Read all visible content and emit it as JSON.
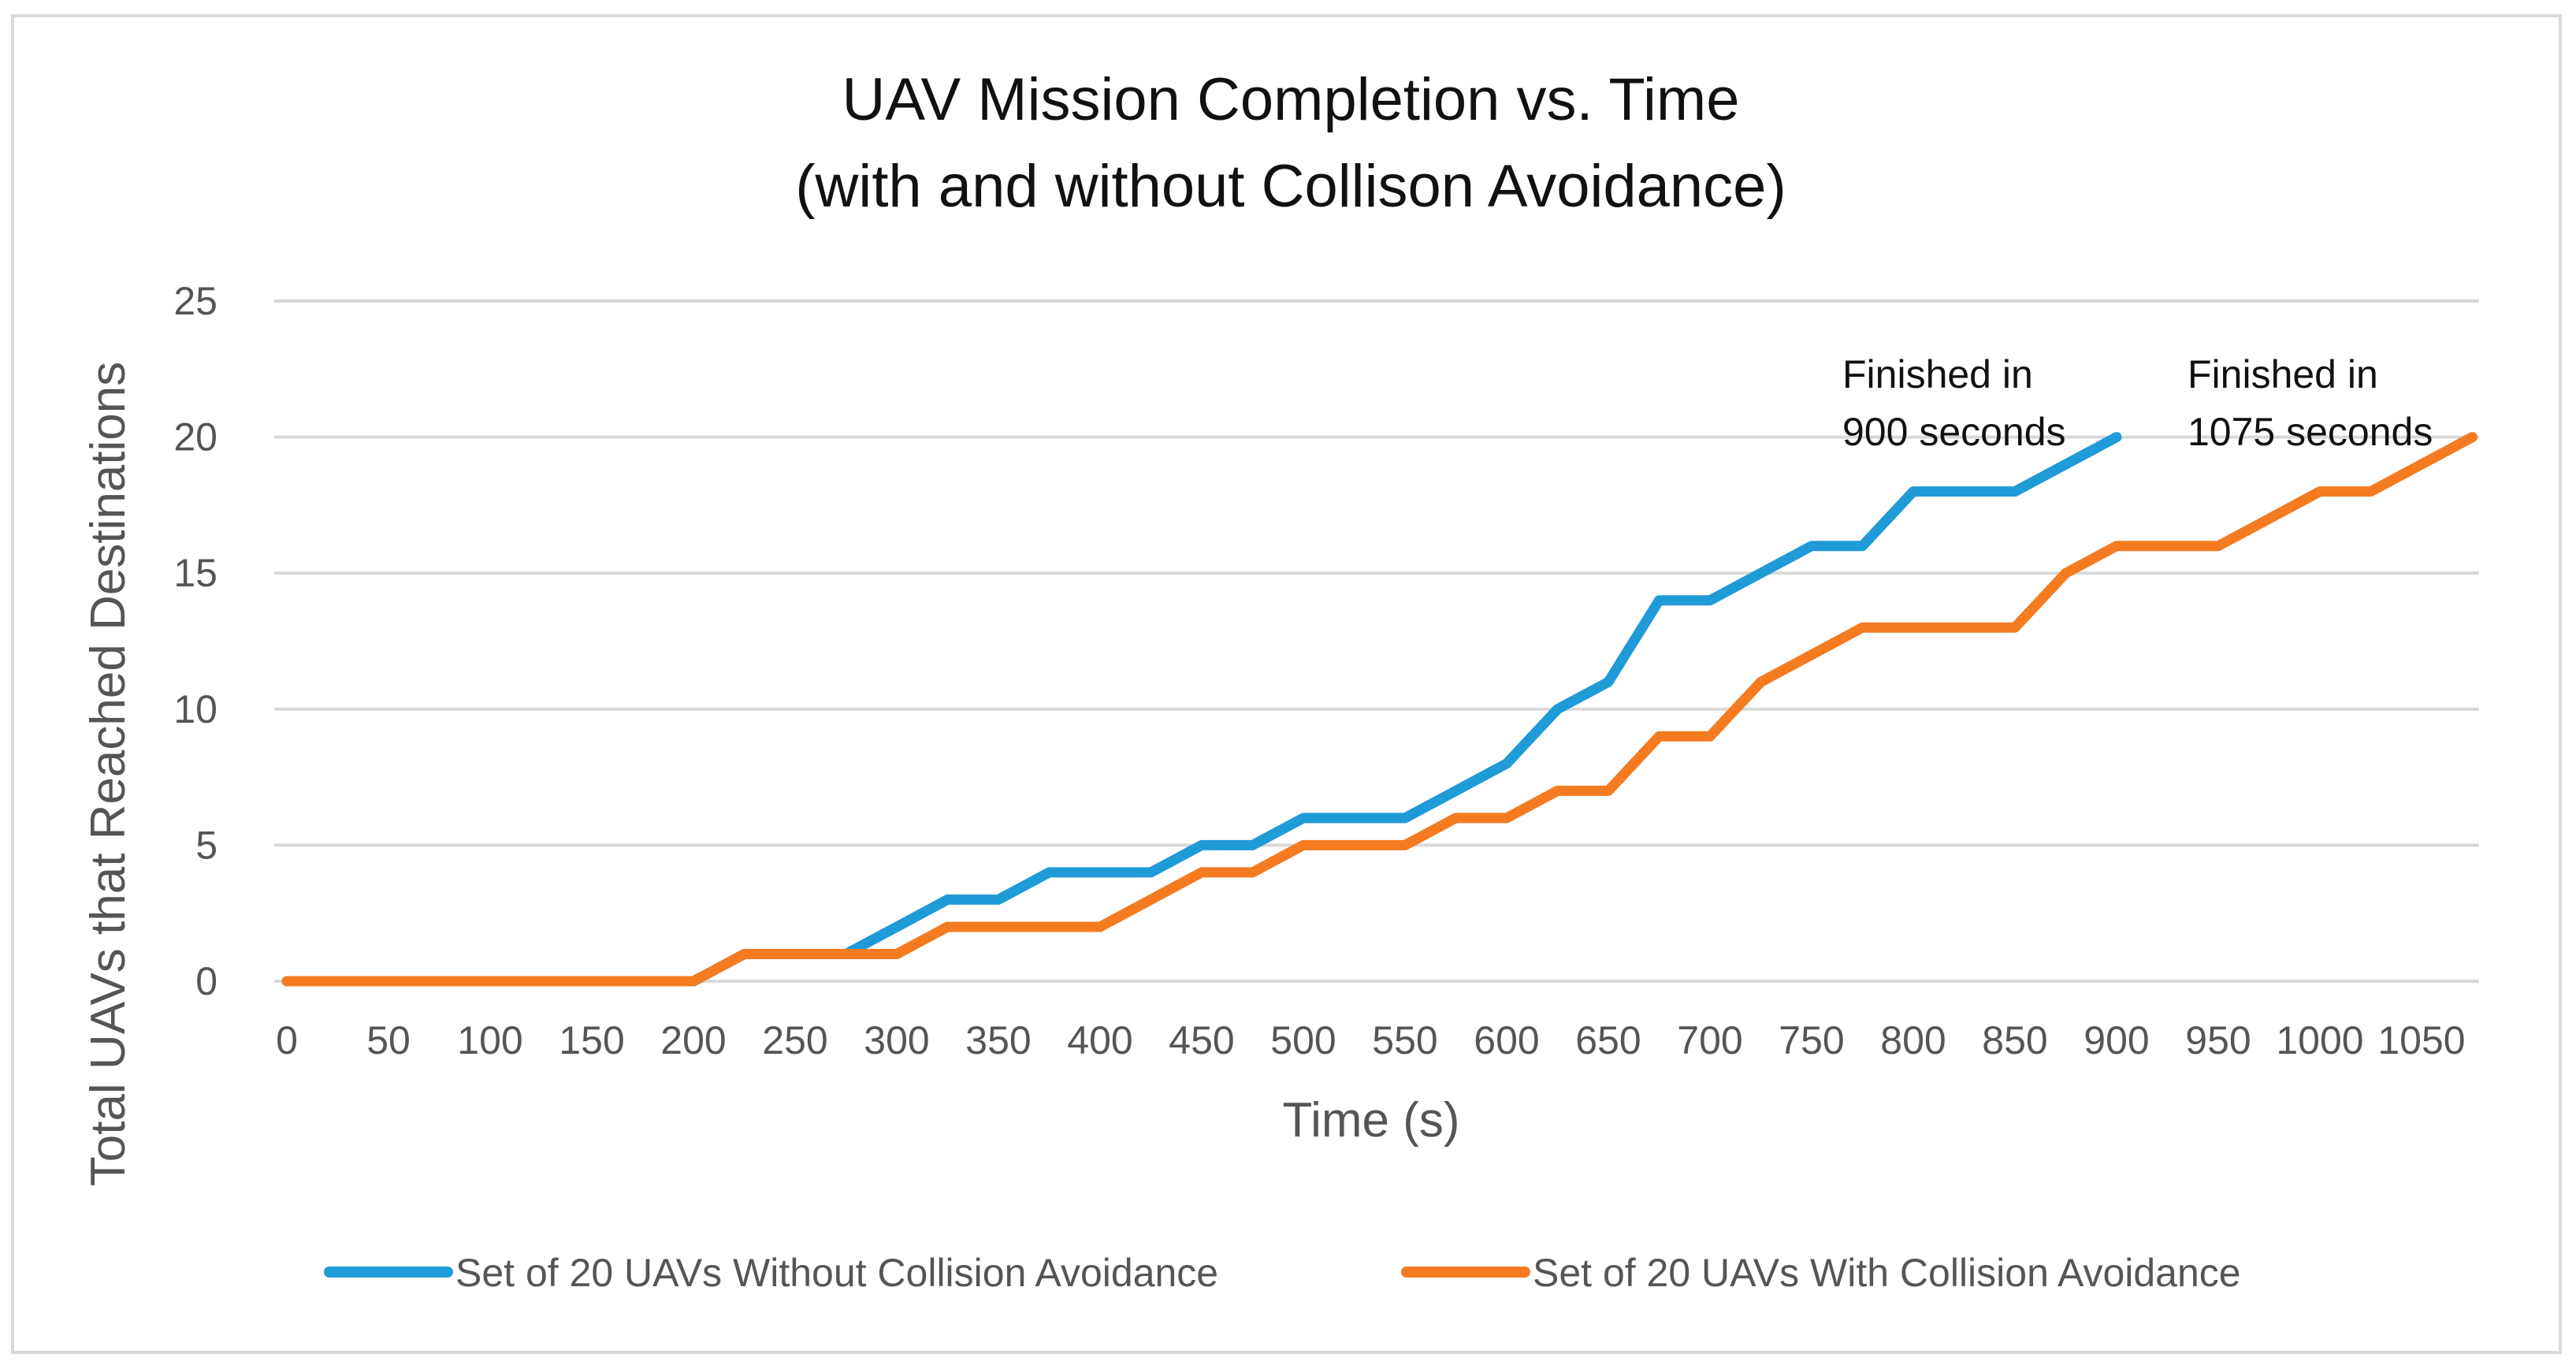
{
  "chart_data": {
    "type": "line",
    "title_lines": [
      "UAV Mission Completion vs. Time",
      "(with and without Collison Avoidance)"
    ],
    "xlabel": "Time (s)",
    "ylabel": "Total UAVs that Reached Destinations",
    "xlim": [
      0,
      1075
    ],
    "ylim": [
      0,
      25
    ],
    "x_ticks": [
      0,
      50,
      100,
      150,
      200,
      250,
      300,
      350,
      400,
      450,
      500,
      550,
      600,
      650,
      700,
      750,
      800,
      850,
      900,
      950,
      1000,
      1050
    ],
    "y_ticks": [
      0,
      5,
      10,
      15,
      20,
      25
    ],
    "grid": true,
    "legend_position": "bottom",
    "series": [
      {
        "name": "Set of 20 UAVs Without Collision Avoidance",
        "color": "#1f9bd7",
        "points": [
          [
            0,
            0
          ],
          [
            50,
            0
          ],
          [
            100,
            0
          ],
          [
            150,
            0
          ],
          [
            200,
            0
          ],
          [
            225,
            1
          ],
          [
            250,
            1
          ],
          [
            275,
            1
          ],
          [
            300,
            2
          ],
          [
            325,
            3
          ],
          [
            350,
            3
          ],
          [
            375,
            4
          ],
          [
            400,
            4
          ],
          [
            425,
            4
          ],
          [
            450,
            5
          ],
          [
            475,
            5
          ],
          [
            500,
            6
          ],
          [
            525,
            6
          ],
          [
            550,
            6
          ],
          [
            575,
            7
          ],
          [
            600,
            8
          ],
          [
            625,
            10
          ],
          [
            650,
            11
          ],
          [
            675,
            14
          ],
          [
            700,
            14
          ],
          [
            725,
            15
          ],
          [
            750,
            16
          ],
          [
            775,
            16
          ],
          [
            800,
            18
          ],
          [
            825,
            18
          ],
          [
            850,
            18
          ],
          [
            875,
            19
          ],
          [
            900,
            20
          ]
        ]
      },
      {
        "name": "Set of 20 UAVs With Collision Avoidance",
        "color": "#f47b20",
        "points": [
          [
            0,
            0
          ],
          [
            50,
            0
          ],
          [
            100,
            0
          ],
          [
            150,
            0
          ],
          [
            200,
            0
          ],
          [
            225,
            1
          ],
          [
            250,
            1
          ],
          [
            275,
            1
          ],
          [
            300,
            1
          ],
          [
            325,
            2
          ],
          [
            350,
            2
          ],
          [
            375,
            2
          ],
          [
            400,
            2
          ],
          [
            425,
            3
          ],
          [
            450,
            4
          ],
          [
            475,
            4
          ],
          [
            500,
            5
          ],
          [
            525,
            5
          ],
          [
            550,
            5
          ],
          [
            575,
            6
          ],
          [
            600,
            6
          ],
          [
            625,
            7
          ],
          [
            650,
            7
          ],
          [
            675,
            9
          ],
          [
            700,
            9
          ],
          [
            725,
            11
          ],
          [
            750,
            12
          ],
          [
            775,
            13
          ],
          [
            800,
            13
          ],
          [
            825,
            13
          ],
          [
            850,
            13
          ],
          [
            875,
            15
          ],
          [
            900,
            16
          ],
          [
            925,
            16
          ],
          [
            950,
            16
          ],
          [
            975,
            17
          ],
          [
            1000,
            18
          ],
          [
            1025,
            18
          ],
          [
            1050,
            19
          ],
          [
            1075,
            20
          ]
        ]
      }
    ],
    "annotations": [
      {
        "lines": [
          "Finished in",
          "900 seconds"
        ],
        "near_x": 900
      },
      {
        "lines": [
          "Finished in",
          "1075 seconds"
        ],
        "near_x": 1075
      }
    ]
  }
}
